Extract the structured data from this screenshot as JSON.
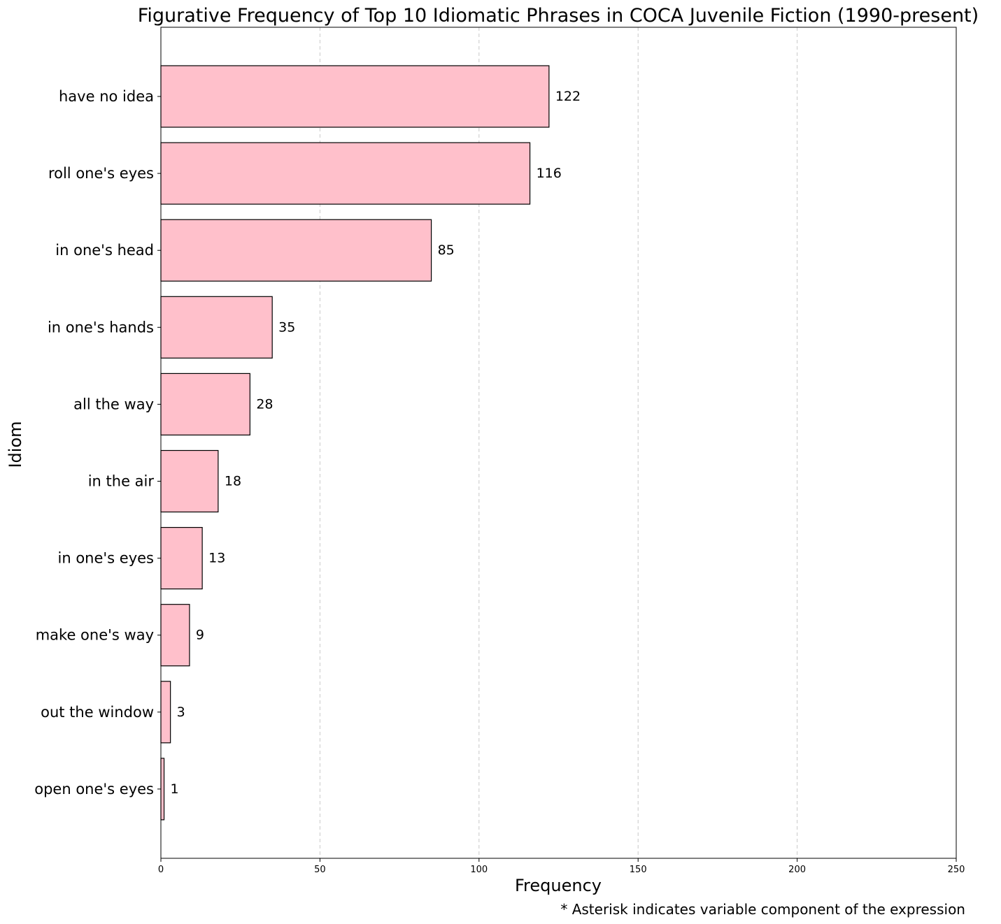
{
  "chart_data": {
    "type": "bar",
    "orientation": "horizontal",
    "title": "Figurative Frequency of Top 10 Idiomatic Phrases  in COCA Juvenile Fiction (1990-present)",
    "xlabel": "Frequency",
    "ylabel": "Idiom",
    "categories": [
      "have no idea",
      "roll one's eyes",
      "in one's head",
      "in one's hands",
      "all the way",
      "in the air",
      "in one's eyes",
      "make one's way",
      "out the window",
      "open one's eyes"
    ],
    "values": [
      122,
      116,
      85,
      35,
      28,
      18,
      13,
      9,
      3,
      1
    ],
    "data_labels": [
      "122",
      "116",
      "85",
      "35",
      "28",
      "18",
      "13",
      "9",
      "3",
      "1"
    ],
    "xlim": [
      0,
      250
    ],
    "xticks": [
      0,
      50,
      100,
      150,
      200,
      250
    ],
    "xtick_labels": [
      "0",
      "50",
      "100",
      "150",
      "200",
      "250"
    ],
    "grid": "x-dashed",
    "bar_color": "#ffc0cb",
    "bar_edge_color": "#000000",
    "grid_color": "#c8c8c8",
    "footnote": "* Asterisk indicates variable component of the expression"
  }
}
